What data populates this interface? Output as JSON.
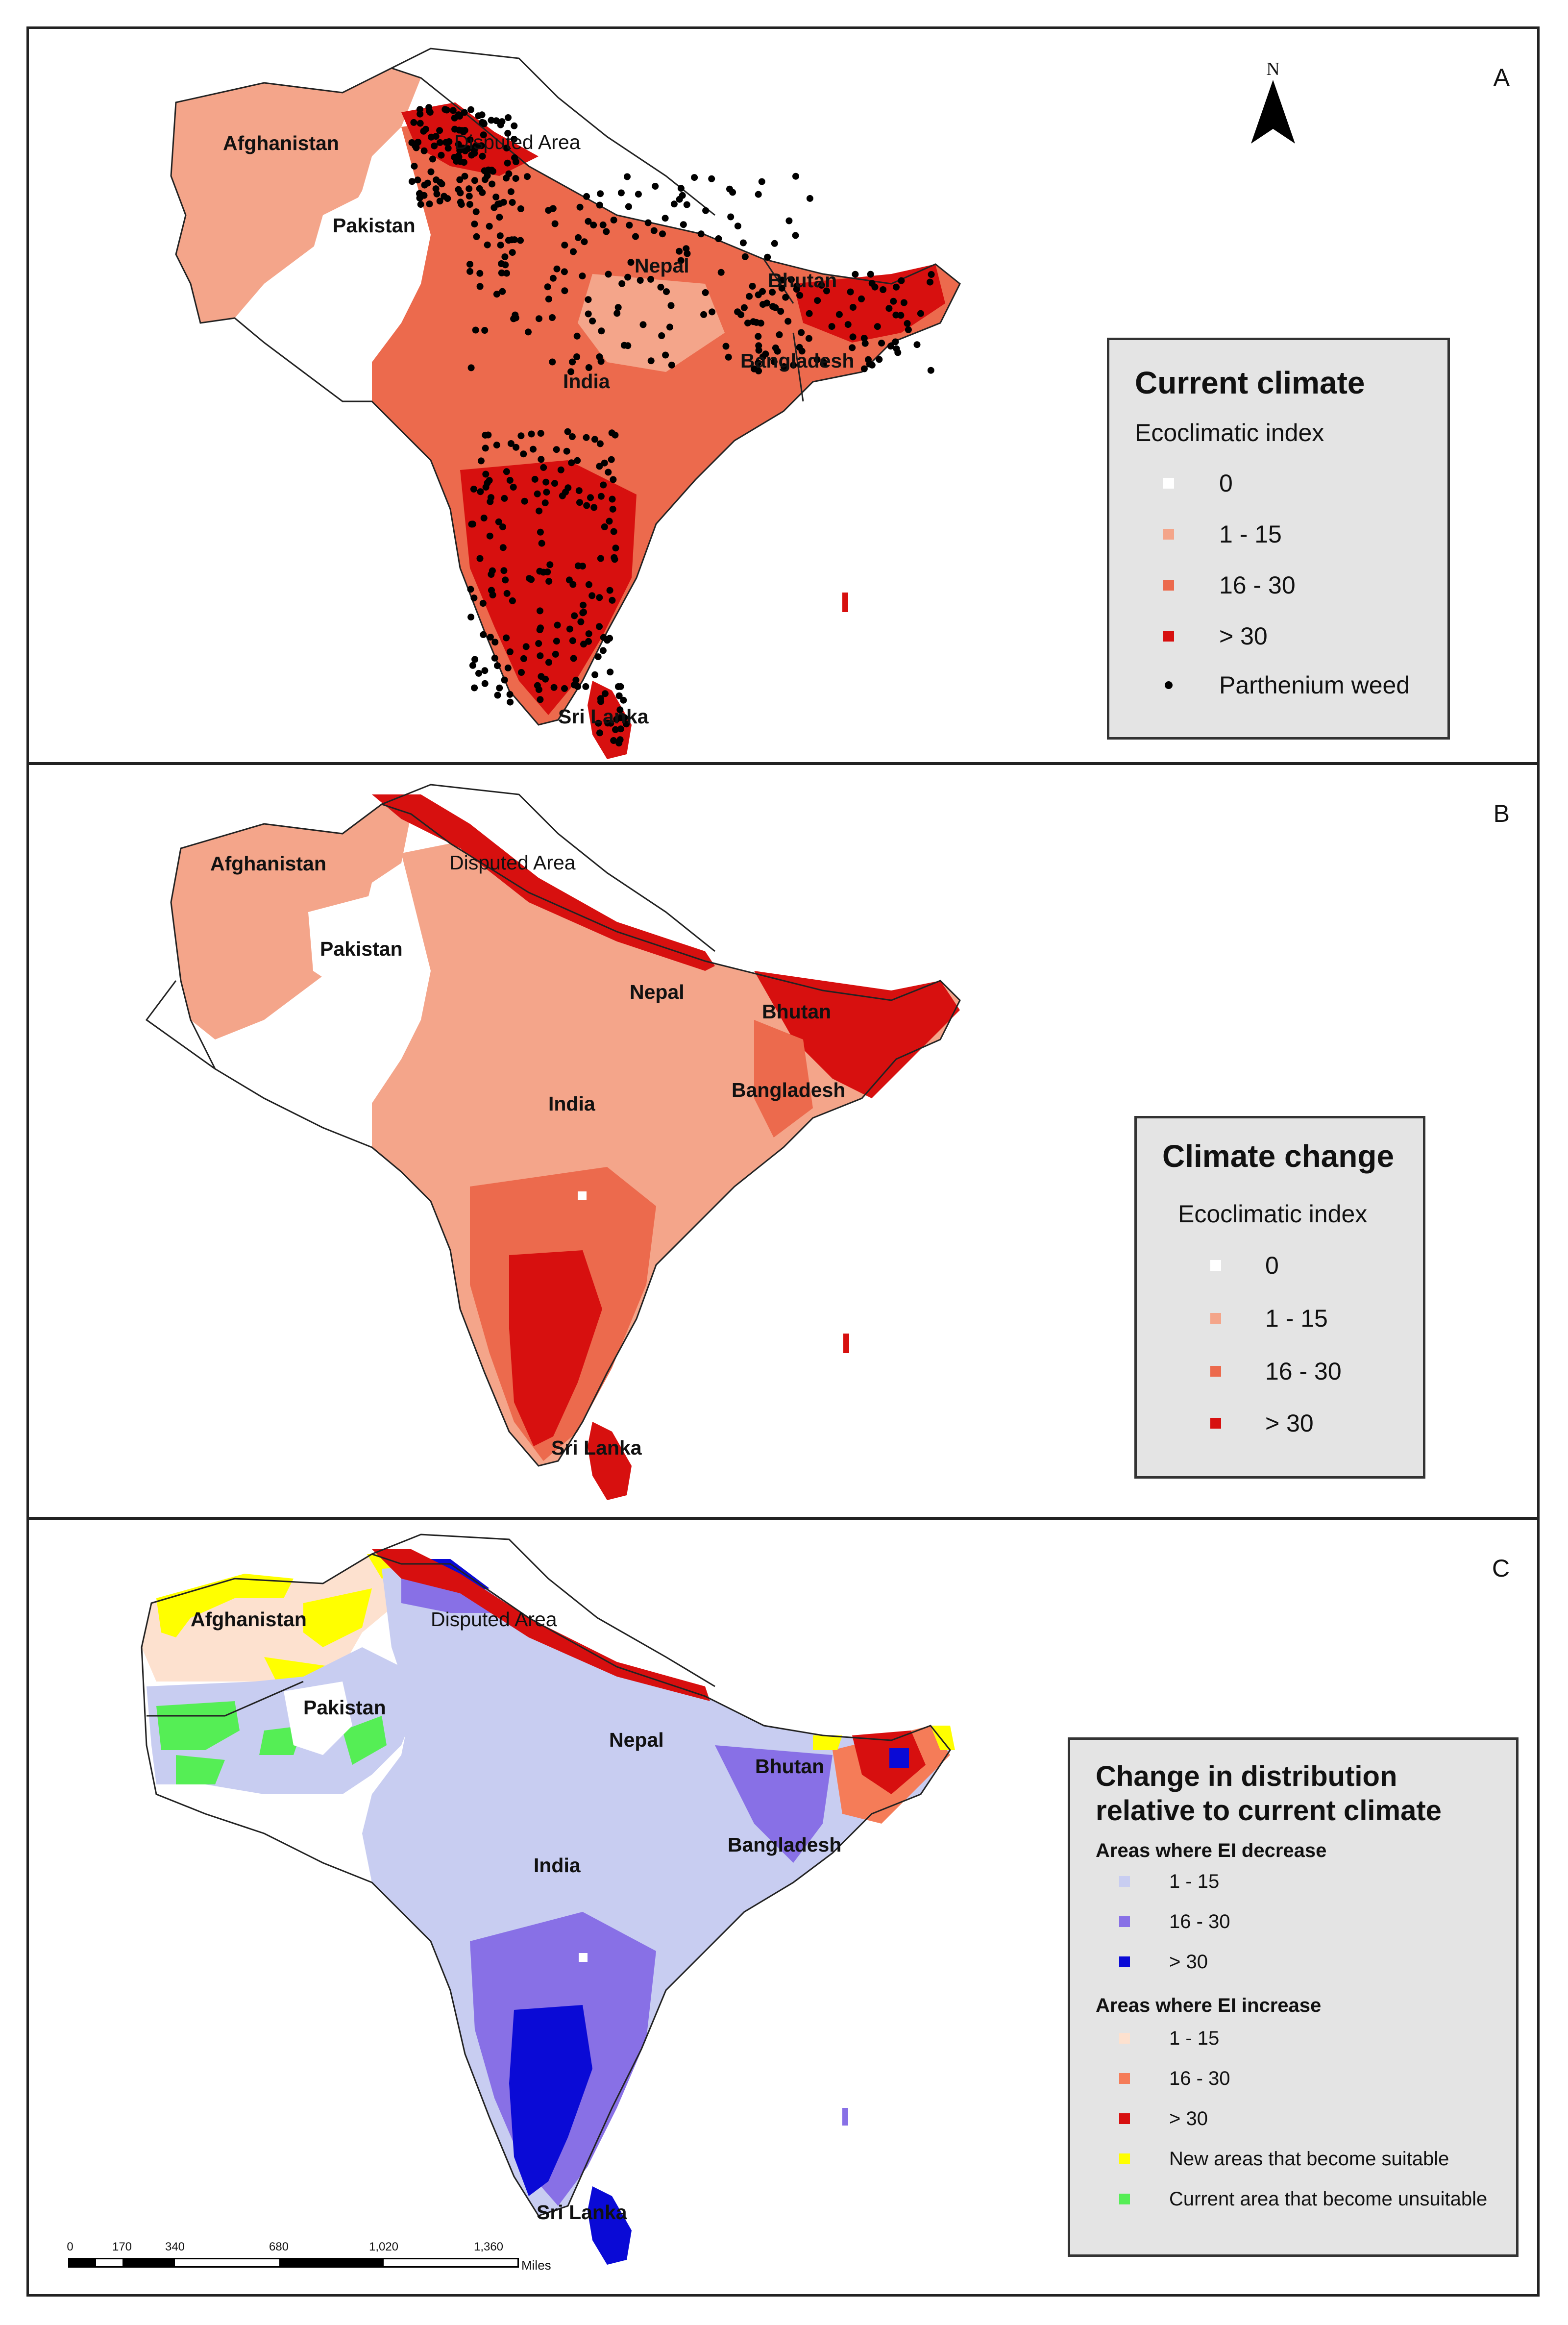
{
  "colors": {
    "ei_zero": "#ffffff",
    "ei_low": "#f4a58a",
    "ei_mid": "#ec6a4d",
    "ei_high": "#d7100f",
    "dec_low": "#c8cdf1",
    "dec_mid": "#8870e6",
    "dec_high": "#0a0ad6",
    "inc_low": "#fde1cf",
    "inc_mid": "#f57c58",
    "inc_high": "#d70f0f",
    "new_suitable": "#ffff00",
    "unsuitable": "#55ee55",
    "outline": "#222222",
    "point": "#000000"
  },
  "panels": {
    "a": {
      "letter": "A",
      "north": "N",
      "labels": {
        "afghanistan": "Afghanistan",
        "disputed": "Disputed Area",
        "pakistan": "Pakistan",
        "nepal": "Nepal",
        "bhutan": "Bhutan",
        "bangladesh": "Bangladesh",
        "india": "India",
        "srilanka": "Sri Lanka"
      },
      "legend": {
        "title": "Current climate",
        "subtitle": "Ecoclimatic index",
        "items": [
          {
            "label": "0",
            "color": "#ffffff"
          },
          {
            "label": "1 - 15",
            "color": "#f4a58a"
          },
          {
            "label": "16 - 30",
            "color": "#ec6a4d"
          },
          {
            "label": "> 30",
            "color": "#d7100f"
          },
          {
            "label": "Parthenium weed",
            "symbol": "point"
          }
        ]
      }
    },
    "b": {
      "letter": "B",
      "labels": {
        "afghanistan": "Afghanistan",
        "disputed": "Disputed Area",
        "pakistan": "Pakistan",
        "nepal": "Nepal",
        "bhutan": "Bhutan",
        "bangladesh": "Bangladesh",
        "india": "India",
        "srilanka": "Sri Lanka"
      },
      "legend": {
        "title": "Climate change",
        "subtitle": "Ecoclimatic index",
        "items": [
          {
            "label": "0",
            "color": "#ffffff"
          },
          {
            "label": "1 - 15",
            "color": "#f4a58a"
          },
          {
            "label": "16 - 30",
            "color": "#ec6a4d"
          },
          {
            "label": "> 30",
            "color": "#d7100f"
          }
        ]
      }
    },
    "c": {
      "letter": "C",
      "labels": {
        "afghanistan": "Afghanistan",
        "disputed": "Disputed Area",
        "pakistan": "Pakistan",
        "nepal": "Nepal",
        "bhutan": "Bhutan",
        "bangladesh": "Bangladesh",
        "india": "India",
        "srilanka": "Sri Lanka"
      },
      "legend": {
        "title": "Change in distribution relative to current climate",
        "decrease_heading": "Areas where EI decrease",
        "decrease_items": [
          {
            "label": "1 - 15",
            "color": "#c8cdf1"
          },
          {
            "label": "16 - 30",
            "color": "#8870e6"
          },
          {
            "label": "> 30",
            "color": "#0a0ad6"
          }
        ],
        "increase_heading": "Areas where EI increase",
        "increase_items": [
          {
            "label": "1 - 15",
            "color": "#fde1cf"
          },
          {
            "label": "16 - 30",
            "color": "#f57c58"
          },
          {
            "label": "> 30",
            "color": "#d70f0f"
          },
          {
            "label": "New areas that become suitable",
            "color": "#ffff00"
          },
          {
            "label": "Current area that become unsuitable",
            "color": "#55ee55"
          }
        ]
      },
      "scale": {
        "ticks": [
          "0",
          "170",
          "340",
          "680",
          "1,020",
          "1,360"
        ],
        "unit": "Miles"
      }
    }
  }
}
